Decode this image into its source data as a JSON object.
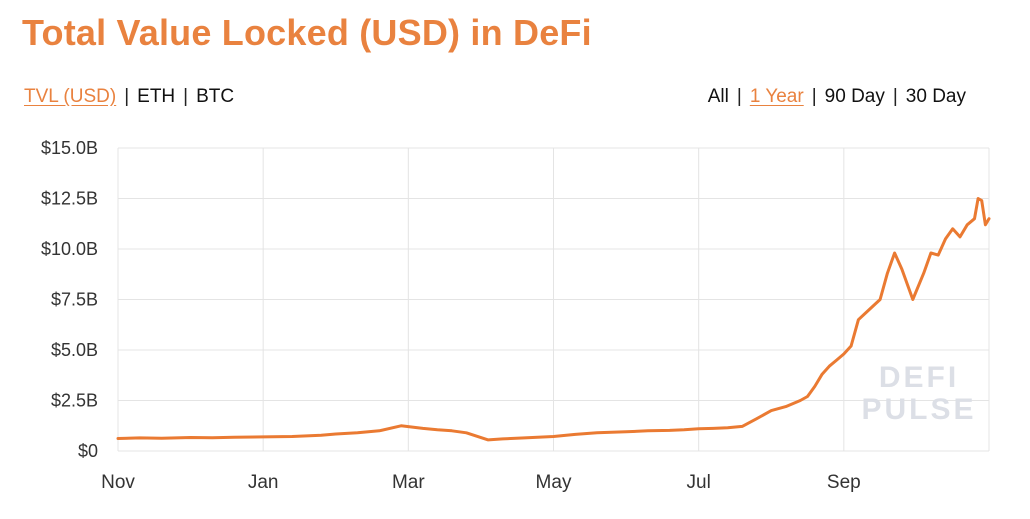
{
  "title": "Total Value Locked (USD) in DeFi",
  "currency_toggles": [
    {
      "label": "TVL (USD)",
      "active": true
    },
    {
      "label": "ETH",
      "active": false
    },
    {
      "label": "BTC",
      "active": false
    }
  ],
  "range_toggles": [
    {
      "label": "All",
      "active": false
    },
    {
      "label": "1 Year",
      "active": true
    },
    {
      "label": "90 Day",
      "active": false
    },
    {
      "label": "30 Day",
      "active": false
    }
  ],
  "watermark": [
    "DEFI",
    "PULSE"
  ],
  "colors": {
    "accent": "#e9823f",
    "line": "#ea7a32",
    "grid": "#e4e4e4"
  },
  "chart_data": {
    "type": "line",
    "title": "Total Value Locked (USD) in DeFi",
    "xlabel": "",
    "ylabel": "",
    "x_tick_labels": [
      "Nov",
      "Jan",
      "Mar",
      "May",
      "Jul",
      "Sep"
    ],
    "y_tick_labels": [
      "$0",
      "$2.5B",
      "$5.0B",
      "$7.5B",
      "$10.0B",
      "$12.5B",
      "$15.0B"
    ],
    "y_ticks": [
      0,
      2.5,
      5,
      7.5,
      10,
      12.5,
      15
    ],
    "ylim": [
      0,
      15
    ],
    "y_unit": "B USD",
    "xlim": [
      0,
      12
    ],
    "x_units": "months since Nov 1",
    "grid": true,
    "series": [
      {
        "x": [
          0,
          0.3,
          0.6,
          1.0,
          1.3,
          1.6,
          2.0,
          2.4,
          2.8,
          3.0,
          3.3,
          3.6,
          3.9,
          4.2,
          4.4,
          4.6,
          4.8,
          5.1,
          5.3,
          5.6,
          6.0,
          6.3,
          6.6,
          7.0,
          7.3,
          7.6,
          7.8,
          8.0,
          8.2,
          8.4,
          8.6,
          8.8,
          9.0,
          9.2,
          9.4,
          9.5,
          9.6,
          9.7,
          9.8,
          9.9,
          10.0,
          10.1,
          10.2,
          10.35,
          10.5,
          10.6,
          10.7,
          10.8,
          10.95,
          11.1,
          11.2,
          11.3,
          11.4,
          11.5,
          11.6,
          11.7,
          11.8,
          11.85,
          11.9,
          11.95,
          12.0
        ],
        "values": [
          0.62,
          0.65,
          0.63,
          0.67,
          0.66,
          0.68,
          0.7,
          0.72,
          0.78,
          0.84,
          0.9,
          1.0,
          1.25,
          1.12,
          1.05,
          1.0,
          0.9,
          0.55,
          0.6,
          0.65,
          0.72,
          0.82,
          0.9,
          0.95,
          1.0,
          1.02,
          1.05,
          1.1,
          1.12,
          1.15,
          1.22,
          1.6,
          2.0,
          2.2,
          2.5,
          2.7,
          3.2,
          3.8,
          4.2,
          4.5,
          4.8,
          5.2,
          6.5,
          7.0,
          7.5,
          8.8,
          9.8,
          9.0,
          7.5,
          8.8,
          9.8,
          9.7,
          10.5,
          11.0,
          10.6,
          11.2,
          11.5,
          12.5,
          12.4,
          11.2,
          11.5
        ]
      }
    ]
  }
}
